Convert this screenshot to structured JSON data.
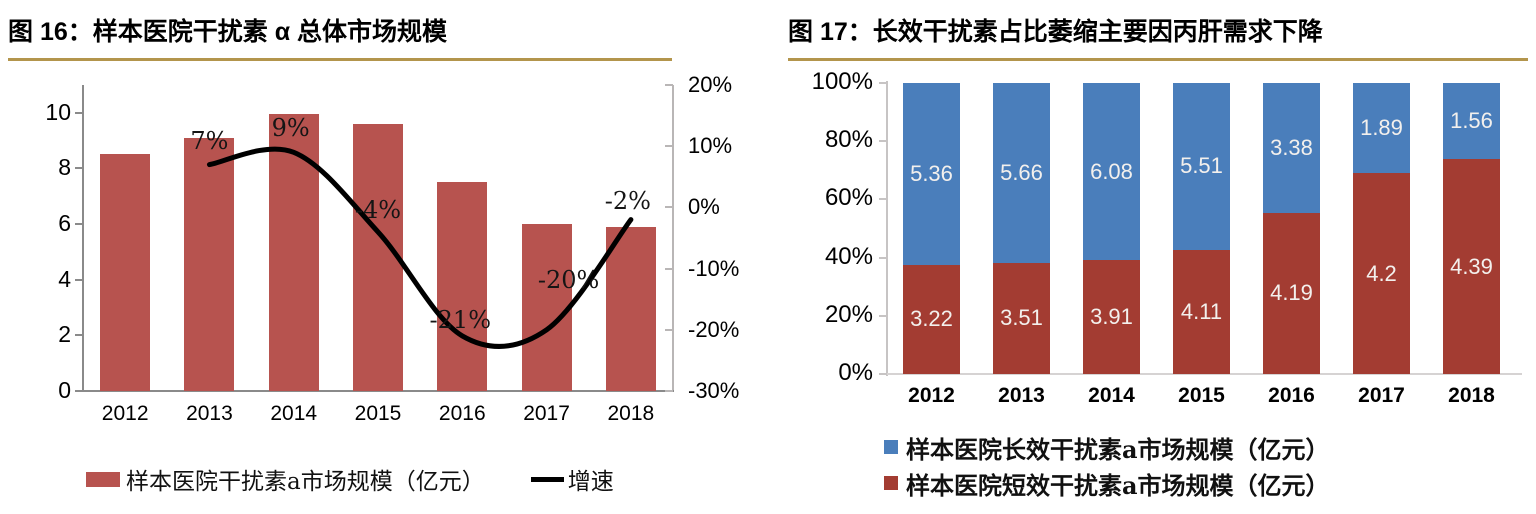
{
  "colors": {
    "accent_rule": "#B3954C",
    "fig16_bar": "#B7534F",
    "fig16_line": "#000000",
    "fig17_long_effect_blue": "#4A7EBB",
    "fig17_short_effect_red": "#A33C32",
    "bar_label_text": "#F3F0ED"
  },
  "chart_data": [
    {
      "id": "fig16",
      "type": "bar",
      "title": "图 16：样本医院干扰素 α 总体市场规模",
      "categories": [
        "2012",
        "2013",
        "2014",
        "2015",
        "2016",
        "2017",
        "2018"
      ],
      "series": [
        {
          "name": "样本医院干扰素a市场规模（亿元）",
          "type": "bar",
          "axis": "left",
          "color": "#B7534F",
          "values": [
            8.5,
            9.1,
            9.95,
            9.6,
            7.5,
            6.0,
            5.9
          ]
        },
        {
          "name": "增速",
          "type": "line",
          "axis": "right",
          "color": "#000000",
          "values": [
            null,
            7,
            9,
            -4,
            -21,
            -20,
            -2
          ],
          "point_labels": [
            null,
            "7%",
            "9%",
            "-4%",
            "-21%",
            "-20%",
            "-2%"
          ]
        }
      ],
      "left_axis": {
        "min": 0,
        "max": 10,
        "ticks": [
          10,
          8,
          6,
          4,
          2,
          0
        ]
      },
      "right_axis": {
        "min": -30,
        "max": 20,
        "ticks": [
          "20%",
          "10%",
          "0%",
          "-10%",
          "-20%",
          "-30%"
        ]
      },
      "grid": false,
      "legend_position": "bottom"
    },
    {
      "id": "fig17",
      "type": "stacked-bar-100",
      "title": "图 17：长效干扰素占比萎缩主要因丙肝需求下降",
      "categories": [
        "2012",
        "2013",
        "2014",
        "2015",
        "2016",
        "2017",
        "2018"
      ],
      "series": [
        {
          "name": "样本医院长效干扰素a市场规模（亿元）",
          "stack_order": "top",
          "color": "#4A7EBB",
          "values": [
            5.36,
            5.66,
            6.08,
            5.51,
            3.38,
            1.89,
            1.56
          ],
          "labels": [
            "5.36",
            "5.66",
            "6.08",
            "5.51",
            "3.38",
            "1.89",
            "1.56"
          ]
        },
        {
          "name": "样本医院短效干扰素a市场规模（亿元）",
          "stack_order": "bottom",
          "color": "#A33C32",
          "values": [
            3.22,
            3.51,
            3.91,
            4.11,
            4.19,
            4.2,
            4.39
          ],
          "labels": [
            "3.22",
            "3.51",
            "3.91",
            "4.11",
            "4.19",
            "4.2",
            "4.39"
          ]
        }
      ],
      "y_axis": {
        "min": 0,
        "max": 100,
        "ticks": [
          "100%",
          "80%",
          "60%",
          "40%",
          "20%",
          "0%"
        ]
      },
      "grid": false,
      "legend_position": "bottom"
    }
  ]
}
